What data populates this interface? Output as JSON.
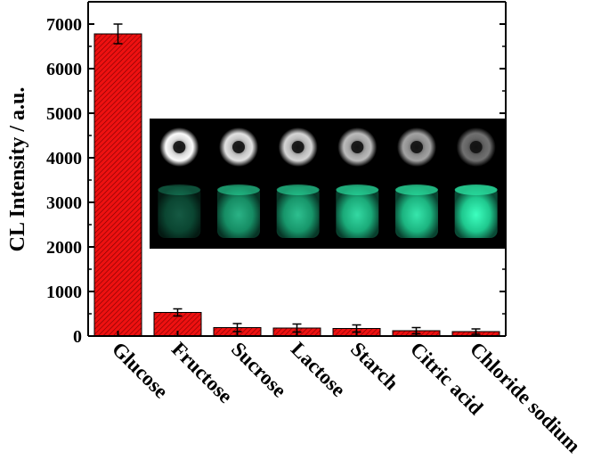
{
  "chart_data": {
    "type": "bar",
    "title": "",
    "xlabel": "",
    "ylabel": "CL Intensity / a.u.",
    "ylim": [
      0,
      7000
    ],
    "yticks": [
      0,
      1000,
      2000,
      3000,
      4000,
      5000,
      6000,
      7000
    ],
    "categories": [
      "Glucose",
      "Fructose",
      "Sucrose",
      "Lactose",
      "Starch",
      "Citric acid",
      "Chloride sodium"
    ],
    "values": [
      6780,
      530,
      190,
      180,
      170,
      120,
      100
    ],
    "errors": [
      220,
      80,
      90,
      90,
      80,
      70,
      60
    ],
    "bar_color": "#ee1111",
    "bar_hatch": "diagonal",
    "grid": false,
    "inset": {
      "description_top_row": "grayscale ring images",
      "description_bottom_row": "green glowing vials",
      "count": 6
    }
  }
}
